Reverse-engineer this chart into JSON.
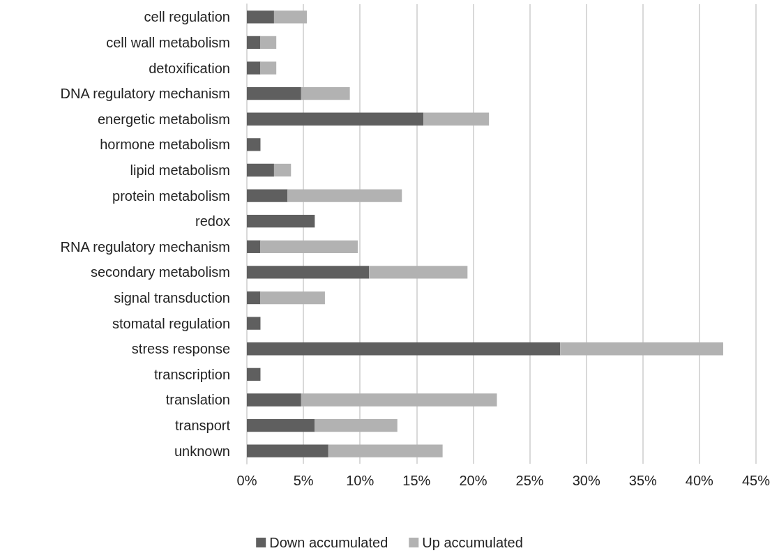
{
  "chart_data": {
    "type": "bar",
    "orientation": "horizontal",
    "stacked": true,
    "categories": [
      "cell regulation",
      "cell wall metabolism",
      "detoxification",
      "DNA regulatory mechanism",
      "energetic metabolism",
      "hormone metabolism",
      "lipid metabolism",
      "protein metabolism",
      "redox",
      "RNA regulatory mechanism",
      "secondary metabolism",
      "signal transduction",
      "stomatal regulation",
      "stress response",
      "transcription",
      "translation",
      "transport",
      "unknown"
    ],
    "series": [
      {
        "name": "Down accumulated",
        "color": "#5f5f5f",
        "values": [
          2.4,
          1.2,
          1.2,
          4.8,
          15.6,
          1.2,
          2.4,
          3.6,
          6.0,
          1.2,
          10.8,
          1.2,
          1.2,
          27.7,
          1.2,
          4.8,
          6.0,
          7.2
        ]
      },
      {
        "name": "Up accumulated",
        "color": "#b2b2b2",
        "values": [
          2.9,
          1.4,
          1.4,
          4.3,
          5.8,
          0,
          1.5,
          10.1,
          0,
          8.6,
          8.7,
          5.7,
          0,
          14.4,
          0,
          17.3,
          7.3,
          10.1
        ]
      }
    ],
    "xlim": [
      0,
      45
    ],
    "xticks": [
      {
        "value": 0,
        "label": "0%"
      },
      {
        "value": 5,
        "label": "5%"
      },
      {
        "value": 10,
        "label": "10%"
      },
      {
        "value": 15,
        "label": "15%"
      },
      {
        "value": 20,
        "label": "20%"
      },
      {
        "value": 25,
        "label": "25%"
      },
      {
        "value": 30,
        "label": "30%"
      },
      {
        "value": 35,
        "label": "35%"
      },
      {
        "value": 40,
        "label": "40%"
      },
      {
        "value": 45,
        "label": "45%"
      }
    ],
    "grid": "x",
    "legend": "bottom"
  }
}
